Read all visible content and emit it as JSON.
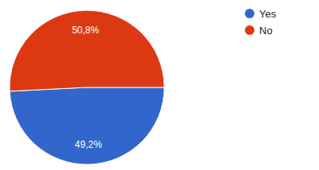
{
  "chart_data": {
    "type": "pie",
    "categories": [
      "Yes",
      "No"
    ],
    "values": [
      49.2,
      50.8
    ],
    "value_labels": [
      "49,2%",
      "50,8%"
    ],
    "colors": [
      "#3366cc",
      "#dc3912"
    ],
    "data_labels": true,
    "legend": "top-right"
  }
}
